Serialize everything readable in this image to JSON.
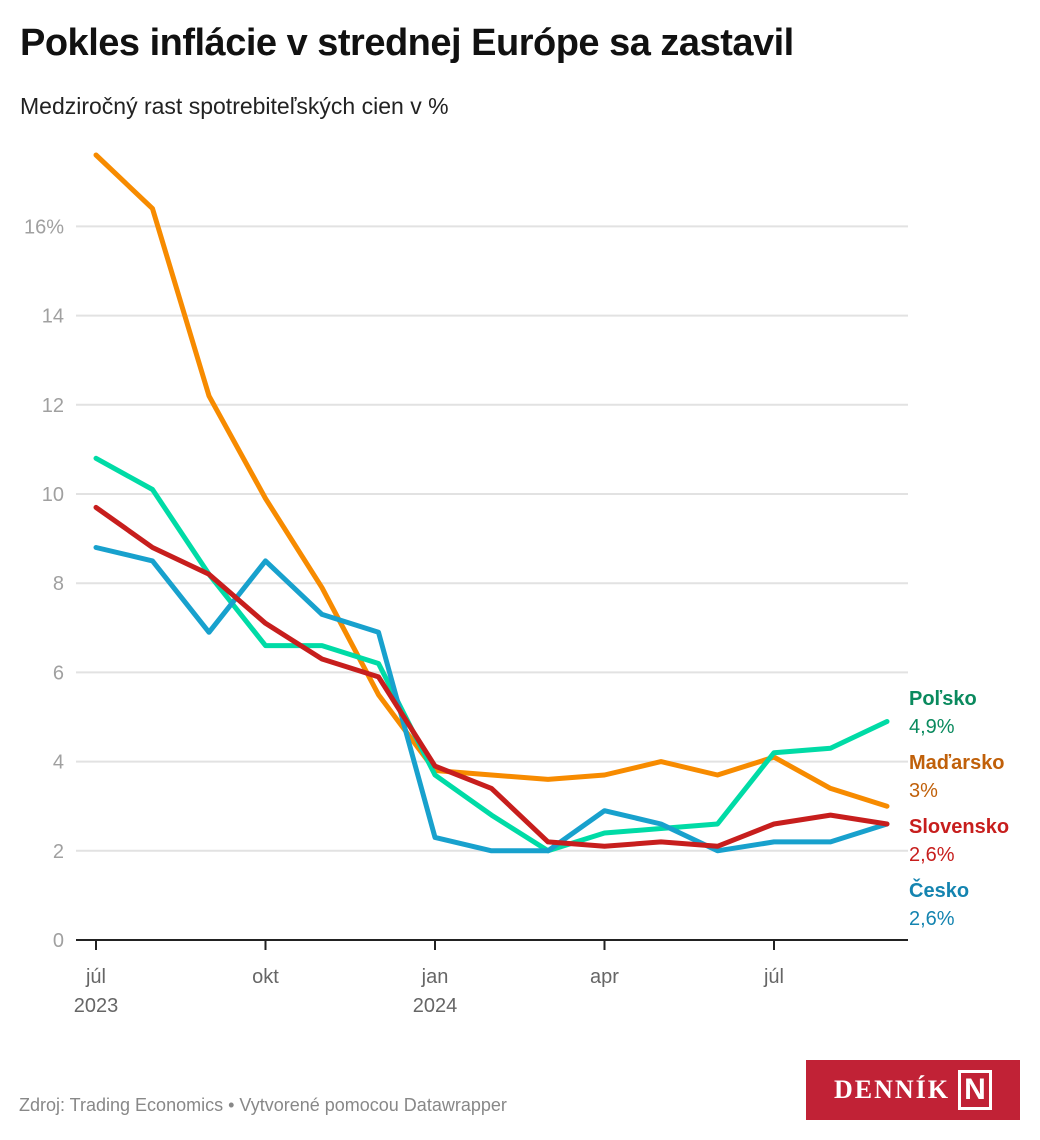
{
  "header": {
    "title": "Pokles inflácie v strednej Európe sa zastavil",
    "subtitle": "Medziročný rast spotrebiteľských cien v %"
  },
  "footer": {
    "source": "Zdroj: Trading Economics • Vytvorené pomocou Datawrapper"
  },
  "logo": {
    "text": "DENNÍK",
    "mark": "N",
    "color": "#c12236"
  },
  "chart_data": {
    "type": "line",
    "title": "Pokles inflácie v strednej Európe sa zastavil",
    "subtitle": "Medziročný rast spotrebiteľských cien v %",
    "xlabel": "",
    "ylabel": "",
    "x": [
      "2023-07",
      "2023-08",
      "2023-09",
      "2023-10",
      "2023-11",
      "2023-12",
      "2024-01",
      "2024-02",
      "2024-03",
      "2024-04",
      "2024-05",
      "2024-06",
      "2024-07",
      "2024-08",
      "2024-09"
    ],
    "ylim": [
      0,
      17.6
    ],
    "yticks": [
      0,
      2,
      4,
      6,
      8,
      10,
      12,
      14,
      16
    ],
    "ytick_labels": [
      "0",
      "2",
      "4",
      "6",
      "8",
      "10",
      "12",
      "14",
      "16%"
    ],
    "xticks": [
      {
        "index": 0,
        "label": "júl",
        "sublabel": "2023"
      },
      {
        "index": 3,
        "label": "okt",
        "sublabel": ""
      },
      {
        "index": 6,
        "label": "jan",
        "sublabel": "2024"
      },
      {
        "index": 9,
        "label": "apr",
        "sublabel": ""
      },
      {
        "index": 12,
        "label": "júl",
        "sublabel": ""
      }
    ],
    "grid": true,
    "legend": "right (direct labels at line ends)",
    "series": [
      {
        "name": "Maďarsko",
        "end_label": "3%",
        "color": "#f78b00",
        "label_color": "#c0600a",
        "values": [
          17.6,
          16.4,
          12.2,
          9.9,
          7.9,
          5.5,
          3.8,
          3.7,
          3.6,
          3.7,
          4.0,
          3.7,
          4.1,
          3.4,
          3.0
        ]
      },
      {
        "name": "Poľsko",
        "end_label": "4,9%",
        "color": "#00dba6",
        "label_color": "#0a8a5e",
        "values": [
          10.8,
          10.1,
          8.2,
          6.6,
          6.6,
          6.2,
          3.7,
          2.8,
          2.0,
          2.4,
          2.5,
          2.6,
          4.2,
          4.3,
          4.9
        ]
      },
      {
        "name": "Česko",
        "end_label": "2,6%",
        "color": "#18a1cd",
        "label_color": "#1484b0",
        "values": [
          8.8,
          8.5,
          6.9,
          8.5,
          7.3,
          6.9,
          2.3,
          2.0,
          2.0,
          2.9,
          2.6,
          2.0,
          2.2,
          2.2,
          2.6
        ]
      },
      {
        "name": "Slovensko",
        "end_label": "2,6%",
        "color": "#c71e1d",
        "label_color": "#c71e1d",
        "values": [
          9.7,
          8.8,
          8.2,
          7.1,
          6.3,
          5.9,
          3.9,
          3.4,
          2.2,
          2.1,
          2.2,
          2.1,
          2.6,
          2.8,
          2.6
        ]
      }
    ],
    "label_order": [
      "Poľsko",
      "Maďarsko",
      "Slovensko",
      "Česko"
    ]
  }
}
